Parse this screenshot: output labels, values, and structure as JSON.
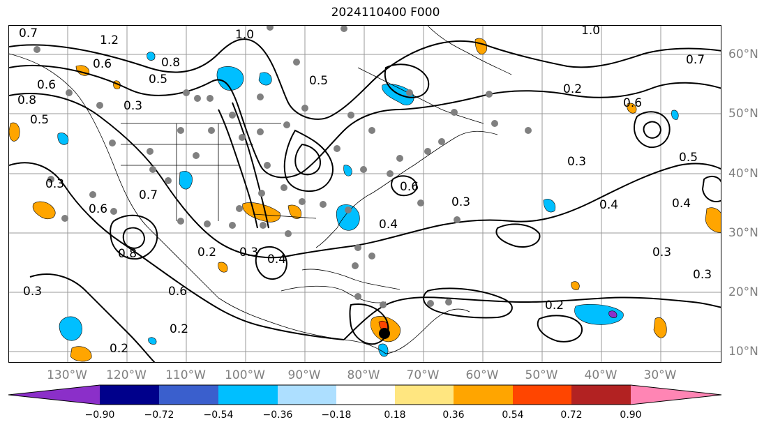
{
  "title": "2024110400 F000",
  "map": {
    "lon_labels": [
      "130°W",
      "120°W",
      "110°W",
      "100°W",
      "90°W",
      "80°W",
      "70°W",
      "60°W",
      "50°W",
      "40°W",
      "30°W"
    ],
    "lat_labels": [
      "60°N",
      "50°N",
      "40°N",
      "30°N",
      "20°N",
      "10°N"
    ],
    "contour_labels": [
      "0.7",
      "1.2",
      "0.6",
      "0.8",
      "0.5",
      "0.6",
      "0.8",
      "0.5",
      "0.3",
      "1.0",
      "0.2",
      "0.5",
      "0.6",
      "0.3",
      "0.3",
      "0.6",
      "0.3",
      "0.4",
      "0.7",
      "0.8",
      "0.2",
      "0.3",
      "0.4",
      "0.3",
      "0.2",
      "0.2",
      "0.2",
      "0.4",
      "0.6",
      "0.5",
      "0.4",
      "0.3",
      "0.3",
      "0.7",
      "1.0",
      "0.6"
    ]
  },
  "colorbar": {
    "tick_labels": [
      "−0.90",
      "−0.72",
      "−0.54",
      "−0.36",
      "−0.18",
      "0.18",
      "0.36",
      "0.54",
      "0.72",
      "0.90"
    ],
    "colors": [
      "#8B2FC9",
      "#00008B",
      "#3A5FCD",
      "#00BFFF",
      "#ADDFFF",
      "#FFFFFF",
      "#FFE680",
      "#FFA500",
      "#FF4500",
      "#B22222",
      "#FF85B4"
    ],
    "extend": "both"
  }
}
